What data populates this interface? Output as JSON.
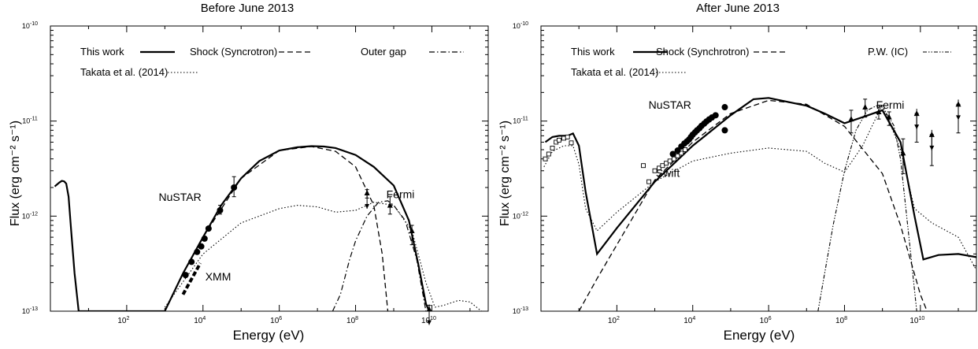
{
  "chart_data": [
    {
      "type": "line",
      "title": "Before June 2013",
      "xlabel": "Energy (eV)",
      "ylabel": "Flux (erg cm⁻² s⁻¹)",
      "xscale": "log",
      "yscale": "log",
      "xlim": [
        1,
        300000000000
      ],
      "ylim": [
        1e-13,
        1e-10
      ],
      "x_tick_labels": [
        "10^2",
        "10^4",
        "10^6",
        "10^8",
        "10^10"
      ],
      "y_tick_labels": [
        "10^-13",
        "10^-12",
        "10^-11",
        "10^-10"
      ],
      "legend": [
        {
          "label": "This work",
          "style": "solid"
        },
        {
          "label": "Shock (Syncrotron)",
          "style": "dashed"
        },
        {
          "label": "Outer gap",
          "style": "dashdot"
        },
        {
          "label": "Takata et al. (2014)",
          "style": "dotted"
        }
      ],
      "annotations": [
        {
          "text": "NuSTAR",
          "x": 2500,
          "y": 1.45e-12
        },
        {
          "text": "XMM",
          "x": 25000,
          "y": 2.1e-13
        },
        {
          "text": "Fermi",
          "x": 1500000000,
          "y": 1.55e-12
        }
      ],
      "series": [
        {
          "id": "this-work",
          "style": "solid",
          "x": [
            1.3,
            1.7,
            2.0,
            2.3,
            2.6,
            3.0,
            3.5,
            4.3,
            5.5,
            1000,
            3000,
            10000,
            30000,
            100000,
            300000,
            1000000,
            3000000,
            7000000,
            15000000,
            30000000,
            100000000,
            300000000,
            1000000000,
            2500000000,
            4500000000,
            7000000000,
            8500000000
          ],
          "y": [
            2.05e-12,
            2.25e-12,
            2.35e-12,
            2.32e-12,
            2.2e-12,
            1.6e-12,
            7e-13,
            2.5e-13,
            1e-13,
            1e-13,
            2.5e-13,
            6e-13,
            1.3e-12,
            2.5e-12,
            3.8e-12,
            4.9e-12,
            5.3e-12,
            5.45e-12,
            5.4e-12,
            5.2e-12,
            4.4e-12,
            3.3e-12,
            2.1e-12,
            9e-13,
            3e-13,
            1.2e-13,
            1e-13
          ]
        },
        {
          "id": "shock",
          "style": "dashed",
          "x": [
            10000,
            100000,
            1000000,
            7000000,
            30000000,
            100000000,
            300000000,
            500000000,
            700000000
          ],
          "y": [
            6e-13,
            2.5e-12,
            4.9e-12,
            5.4e-12,
            4.8e-12,
            3.3e-12,
            1.3e-12,
            4e-13,
            1e-13
          ]
        },
        {
          "id": "xmm-band",
          "style": "thick-dashed",
          "x": [
            3000,
            8500
          ],
          "y": [
            1.5e-13,
            3.2e-13
          ]
        },
        {
          "id": "outer-gap",
          "style": "dashdot",
          "x": [
            25000000,
            40000000,
            70000000,
            100000000,
            200000000,
            400000000,
            700000000,
            1000000000,
            2000000000,
            4000000000,
            7000000000
          ],
          "y": [
            1e-13,
            1.5e-13,
            3.5e-13,
            5.5e-13,
            1e-12,
            1.4e-12,
            1.45e-12,
            1.3e-12,
            9e-13,
            3.5e-13,
            1e-13
          ]
        },
        {
          "id": "takata",
          "style": "dotted",
          "x": [
            1000,
            10000,
            100000,
            1000000,
            3000000,
            10000000,
            30000000,
            100000000,
            300000000,
            1000000000,
            3000000000,
            7000000000,
            12000000000,
            20000000000,
            50000000000,
            100000000000,
            200000000000
          ],
          "y": [
            1.1e-13,
            4e-13,
            8.5e-13,
            1.2e-12,
            1.3e-12,
            1.25e-12,
            1.1e-12,
            1.15e-12,
            1.4e-12,
            1.3e-12,
            7e-13,
            2e-13,
            1.1e-13,
            1.15e-13,
            1.3e-13,
            1.25e-13,
            1e-13
          ]
        }
      ],
      "points": [
        {
          "instrument": "XMM",
          "marker": "circle",
          "x": [
            3500,
            5000,
            7000,
            9000,
            11000,
            14000
          ],
          "y": [
            2.4e-13,
            3.3e-13,
            4.2e-13,
            4.8e-13,
            5.8e-13,
            7.4e-13
          ]
        },
        {
          "instrument": "NuSTAR",
          "marker": "circle",
          "x": [
            28000,
            65000
          ],
          "y": [
            1.15e-12,
            2e-12
          ],
          "err_hi": [
            1.3e-12,
            2.6e-12
          ],
          "err_lo": [
            1.05e-12,
            1.6e-12
          ]
        },
        {
          "instrument": "Fermi",
          "marker": "triangle",
          "x": [
            200000000,
            800000000,
            3000000000,
            8500000000
          ],
          "y": [
            1.75e-12,
            1.3e-12,
            7e-13,
            1.05e-13
          ],
          "err_hi": [
            1.9e-12,
            1.6e-12,
            8e-13,
            1.15e-13
          ],
          "err_lo": [
            1.55e-12,
            1.05e-12,
            5e-13,
            1e-13
          ],
          "upper_limit": [
            true,
            false,
            false,
            true
          ]
        }
      ]
    },
    {
      "type": "line",
      "title": "After June 2013",
      "xlabel": "Energy (eV)",
      "ylabel": "Flux (erg cm⁻² s⁻¹)",
      "xscale": "log",
      "yscale": "log",
      "xlim": [
        1,
        300000000000
      ],
      "ylim": [
        1e-13,
        1e-10
      ],
      "x_tick_labels": [
        "10^2",
        "10^4",
        "10^6",
        "10^8",
        "10^10"
      ],
      "y_tick_labels": [
        "10^-13",
        "10^-12",
        "10^-11",
        "10^-10"
      ],
      "legend": [
        {
          "label": "This work",
          "style": "solid"
        },
        {
          "label": "Shock (Synchrotron)",
          "style": "dashed"
        },
        {
          "label": "P.W. (IC)",
          "style": "dotted-sparse"
        },
        {
          "label": "Takata et al. (2014)",
          "style": "dotted"
        }
      ],
      "annotations": [
        {
          "text": "NuSTAR",
          "x": 2500,
          "y": 1.35e-11
        },
        {
          "text": "Swift",
          "x": 2200,
          "y": 2.6e-12
        },
        {
          "text": "Fermi",
          "x": 1600000000,
          "y": 1.35e-11
        }
      ],
      "series": [
        {
          "id": "this-work",
          "style": "solid",
          "x": [
            1.3,
            2,
            3,
            5,
            7,
            10,
            15,
            30,
            100,
            1000,
            10000,
            100000,
            400000,
            1000000,
            10000000,
            30000000,
            100000000,
            300000000,
            1000000000,
            3000000000,
            7000000000,
            12000000000,
            30000000000,
            100000000000,
            300000000000
          ],
          "y": [
            6e-12,
            6.8e-12,
            7e-12,
            7e-12,
            7.4e-12,
            5.5e-12,
            1.8e-12,
            4e-13,
            7.5e-13,
            2.3e-12,
            5.5e-12,
            1.15e-11,
            1.7e-11,
            1.75e-11,
            1.45e-11,
            1.2e-11,
            9.5e-12,
            1.1e-11,
            1.3e-11,
            6e-12,
            1e-12,
            3.5e-13,
            3.9e-13,
            4e-13,
            3.7e-13
          ]
        },
        {
          "id": "shock",
          "style": "dashed",
          "x": [
            10,
            30,
            100,
            1000,
            10000,
            100000,
            1000000,
            10000000,
            100000000,
            1000000000,
            3000000000,
            10000000000,
            15000000000
          ],
          "y": [
            1e-13,
            2.2e-13,
            5e-13,
            2.4e-12,
            6e-12,
            1.2e-11,
            1.65e-11,
            1.5e-11,
            8.8e-12,
            2.8e-12,
            8e-13,
            1.5e-13,
            1e-13
          ]
        },
        {
          "id": "pw-ic",
          "style": "dotted-sparse",
          "x": [
            20000000,
            50000000,
            100000000,
            200000000,
            400000000,
            700000000,
            1000000000,
            2000000000,
            3000000000,
            5000000000,
            8000000000
          ],
          "y": [
            1e-13,
            8e-13,
            3e-12,
            8e-12,
            1.3e-11,
            1.45e-11,
            1.4e-11,
            9e-12,
            4e-12,
            6e-13,
            1e-13
          ]
        },
        {
          "id": "takata",
          "style": "dotted",
          "x": [
            1.2,
            2,
            4,
            7,
            10,
            15,
            30,
            100,
            1000,
            10000,
            100000,
            1000000,
            10000000,
            30000000,
            100000000,
            300000000,
            1000000000,
            3000000000,
            7000000000,
            20000000000,
            100000000000,
            300000000000
          ],
          "y": [
            3.3e-12,
            4.8e-12,
            5.5e-12,
            5.5e-12,
            3.5e-12,
            1.2e-12,
            7e-13,
            1.1e-12,
            2.3e-12,
            3.8e-12,
            4.6e-12,
            5.2e-12,
            4.8e-12,
            3.6e-12,
            2.9e-12,
            5.5e-12,
            1.5e-11,
            5e-12,
            1.2e-12,
            8.5e-13,
            6e-13,
            2.7e-13
          ]
        }
      ],
      "points": [
        {
          "instrument": "Swift",
          "marker": "open-square",
          "x": [
            1.3,
            1.6,
            2,
            2.5,
            3,
            4,
            5,
            6.3,
            500,
            700,
            1000,
            1300,
            1600,
            2000,
            2500,
            3200,
            4000,
            5000,
            6300
          ],
          "y": [
            4e-12,
            4.5e-12,
            5.2e-12,
            6e-12,
            6.3e-12,
            6.6e-12,
            6.8e-12,
            5.9e-12,
            3.4e-12,
            2.3e-12,
            3e-12,
            3.2e-12,
            3.4e-12,
            3.6e-12,
            3.8e-12,
            4e-12,
            4.3e-12,
            4.6e-12,
            5e-12
          ]
        },
        {
          "instrument": "NuSTAR",
          "marker": "circle",
          "x": [
            3000,
            4000,
            5000,
            6000,
            7000,
            8000,
            9000,
            10000,
            11500,
            13000,
            15000,
            17000,
            20000,
            23000,
            27000,
            32000,
            40000,
            70000,
            70000
          ],
          "y": [
            4.5e-12,
            4.9e-12,
            5.4e-12,
            5.8e-12,
            6.1e-12,
            6.4e-12,
            6.8e-12,
            7.2e-12,
            7.6e-12,
            8e-12,
            8.4e-12,
            8.9e-12,
            9.4e-12,
            9.9e-12,
            1.04e-11,
            1.09e-11,
            1.15e-11,
            1.4e-11,
            8e-12
          ]
        },
        {
          "instrument": "Fermi",
          "marker": "triangle",
          "x": [
            150000000,
            350000000,
            800000000,
            1500000000,
            3500000000,
            8000000000,
            20000000000,
            100000000000
          ],
          "y": [
            1.05e-11,
            1.4e-11,
            1.25e-11,
            1.1e-11,
            4.6e-12,
            1.2e-11,
            7.2e-12,
            1.5e-11
          ],
          "err_hi": [
            1.3e-11,
            1.7e-11,
            1.4e-11,
            1.25e-11,
            6.5e-12,
            1.2e-11,
            7.2e-12,
            1.5e-11
          ],
          "err_lo": [
            7.5e-12,
            1.1e-11,
            1.05e-11,
            9e-12,
            2.8e-12,
            6e-12,
            3.4e-12,
            7.5e-12
          ],
          "upper_limit": [
            false,
            false,
            false,
            false,
            false,
            true,
            true,
            true
          ]
        }
      ]
    }
  ]
}
